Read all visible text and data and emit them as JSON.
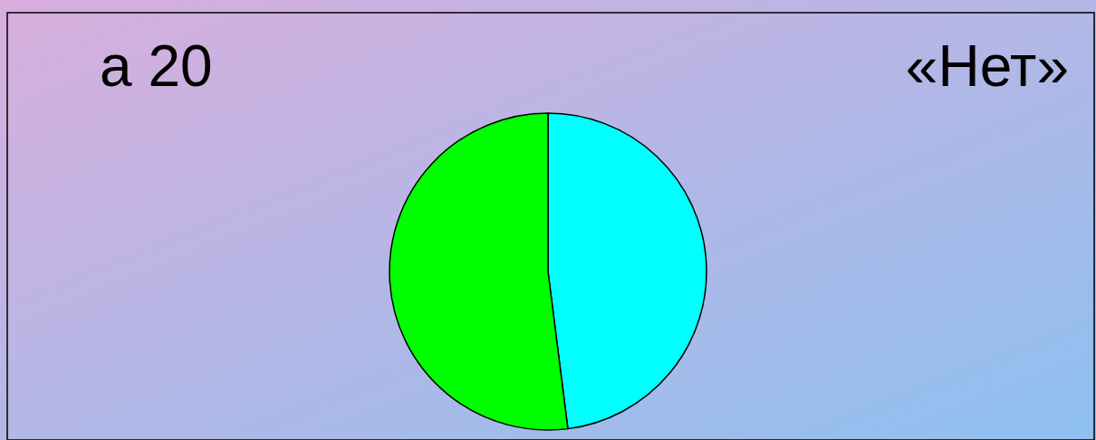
{
  "chart_data": {
    "type": "pie",
    "categories": [
      null,
      null
    ],
    "values": [
      48,
      52
    ],
    "colors": [
      "#00ffff",
      "#00ff00"
    ],
    "annotations": [
      "а 20",
      "«Нет»"
    ]
  }
}
